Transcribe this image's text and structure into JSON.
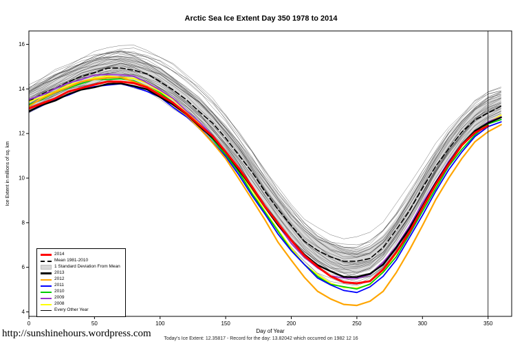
{
  "title": "Arctic Sea Ice Extent Day 350 1978 to 2014",
  "footer": {
    "link": "http://sunshinehours.wordpress.com",
    "status": "Today's Ice Extent: 12.35817 - Record for the day: 13.82042 which occurred on 1982 12 16"
  },
  "chart_data": {
    "type": "line",
    "title": "Arctic Sea Ice Extent Day 350 1978 to 2014",
    "xlabel": "Day of Year",
    "ylabel": "Ice Extent in millions of sq. km",
    "xlim": [
      0,
      368
    ],
    "ylim": [
      3.8,
      16.6
    ],
    "xticks": [
      0,
      50,
      100,
      150,
      200,
      250,
      300,
      350
    ],
    "yticks": [
      4,
      6,
      8,
      10,
      12,
      14,
      16
    ],
    "vline_x": 350,
    "grid": false,
    "legend_position": "bottom-left",
    "x": [
      0,
      10,
      20,
      30,
      40,
      50,
      60,
      70,
      80,
      90,
      100,
      110,
      120,
      130,
      140,
      150,
      160,
      170,
      180,
      190,
      200,
      210,
      220,
      230,
      240,
      250,
      260,
      270,
      280,
      290,
      300,
      310,
      320,
      330,
      340,
      350,
      360
    ],
    "std_band": {
      "label": "1 Standard Deviation From Mean",
      "halfwidth": 0.55,
      "color": "#d8d8d8"
    },
    "background_years": {
      "label": "Every Other Year",
      "count": 30,
      "color": "#000000",
      "upper": [
        14.3,
        14.65,
        15.0,
        15.3,
        15.6,
        15.85,
        16.05,
        16.15,
        16.05,
        15.85,
        15.55,
        15.15,
        14.7,
        14.2,
        13.6,
        12.95,
        12.2,
        11.4,
        10.55,
        9.75,
        9.0,
        8.35,
        7.85,
        7.5,
        7.3,
        7.25,
        7.45,
        7.95,
        8.7,
        9.6,
        10.6,
        11.55,
        12.4,
        13.1,
        13.7,
        14.1,
        14.35
      ],
      "lower": [
        12.85,
        13.1,
        13.35,
        13.6,
        13.8,
        13.95,
        14.05,
        14.1,
        14.0,
        13.8,
        13.5,
        13.1,
        12.65,
        12.15,
        11.55,
        10.85,
        10.05,
        9.15,
        8.25,
        7.4,
        6.6,
        5.95,
        5.45,
        5.1,
        4.9,
        4.85,
        5.05,
        5.55,
        6.3,
        7.25,
        8.3,
        9.35,
        10.3,
        11.1,
        11.75,
        12.2,
        12.45
      ]
    },
    "series": [
      {
        "name": "Mean 1981-2010",
        "color": "#000000",
        "width": 1.6,
        "dash": "7 4",
        "values": [
          13.45,
          13.75,
          14.05,
          14.3,
          14.55,
          14.75,
          14.9,
          14.95,
          14.85,
          14.65,
          14.35,
          13.95,
          13.5,
          13.0,
          12.45,
          11.8,
          11.05,
          10.25,
          9.4,
          8.6,
          7.85,
          7.2,
          6.75,
          6.45,
          6.3,
          6.25,
          6.4,
          6.9,
          7.65,
          8.55,
          9.55,
          10.5,
          11.35,
          12.05,
          12.6,
          12.95,
          13.2
        ]
      },
      {
        "name": "2008",
        "color": "#ffff00",
        "width": 1.8,
        "values": [
          13.4,
          13.65,
          13.9,
          14.15,
          14.35,
          14.5,
          14.55,
          14.55,
          14.45,
          14.25,
          13.9,
          13.5,
          13.0,
          12.45,
          11.85,
          11.15,
          10.35,
          9.45,
          8.55,
          7.65,
          6.85,
          6.15,
          5.65,
          5.3,
          5.1,
          5.05,
          5.25,
          5.8,
          6.6,
          7.55,
          8.6,
          9.65,
          10.6,
          11.4,
          12.05,
          12.5,
          12.8
        ]
      },
      {
        "name": "2009",
        "color": "#9932cc",
        "width": 1.8,
        "values": [
          13.5,
          13.75,
          14.0,
          14.25,
          14.45,
          14.6,
          14.65,
          14.65,
          14.55,
          14.3,
          13.95,
          13.55,
          13.05,
          12.5,
          11.9,
          11.2,
          10.4,
          9.55,
          8.7,
          7.85,
          7.1,
          6.45,
          5.95,
          5.65,
          5.5,
          5.5,
          5.7,
          6.2,
          6.95,
          7.85,
          8.85,
          9.85,
          10.75,
          11.5,
          12.1,
          12.5,
          12.75
        ]
      },
      {
        "name": "2010",
        "color": "#00cc00",
        "width": 1.8,
        "values": [
          13.3,
          13.55,
          13.8,
          14.05,
          14.25,
          14.4,
          14.45,
          14.45,
          14.35,
          14.15,
          13.8,
          13.4,
          12.9,
          12.35,
          11.75,
          11.05,
          10.25,
          9.35,
          8.45,
          7.6,
          6.8,
          6.1,
          5.6,
          5.25,
          5.1,
          5.05,
          5.25,
          5.75,
          6.5,
          7.45,
          8.5,
          9.55,
          10.5,
          11.3,
          11.95,
          12.4,
          12.65
        ]
      },
      {
        "name": "2011",
        "color": "#0000ff",
        "width": 1.8,
        "values": [
          13.0,
          13.25,
          13.5,
          13.75,
          13.95,
          14.1,
          14.2,
          14.2,
          14.1,
          13.9,
          13.6,
          13.2,
          12.75,
          12.25,
          11.65,
          10.95,
          10.15,
          9.25,
          8.35,
          7.5,
          6.75,
          6.1,
          5.55,
          5.2,
          4.95,
          4.9,
          5.1,
          5.6,
          6.35,
          7.3,
          8.35,
          9.4,
          10.35,
          11.2,
          11.85,
          12.3,
          12.55
        ]
      },
      {
        "name": "2012",
        "color": "#ffa500",
        "width": 2.2,
        "values": [
          13.25,
          13.55,
          13.85,
          14.1,
          14.3,
          14.45,
          14.5,
          14.5,
          14.35,
          14.1,
          13.75,
          13.3,
          12.8,
          12.25,
          11.6,
          10.85,
          10.0,
          9.05,
          8.1,
          7.15,
          6.3,
          5.55,
          4.95,
          4.55,
          4.35,
          4.3,
          4.45,
          4.95,
          5.75,
          6.75,
          7.9,
          9.0,
          10.0,
          10.9,
          11.6,
          12.1,
          12.4
        ]
      },
      {
        "name": "2013",
        "color": "#000000",
        "width": 2.4,
        "values": [
          13.0,
          13.25,
          13.5,
          13.75,
          13.95,
          14.1,
          14.2,
          14.25,
          14.15,
          13.95,
          13.65,
          13.3,
          12.85,
          12.35,
          11.8,
          11.15,
          10.4,
          9.55,
          8.7,
          7.9,
          7.2,
          6.6,
          6.1,
          5.8,
          5.6,
          5.55,
          5.7,
          6.15,
          6.85,
          7.75,
          8.75,
          9.75,
          10.7,
          11.5,
          12.1,
          12.5,
          12.7
        ]
      },
      {
        "name": "2014",
        "color": "#ff0000",
        "width": 3,
        "values": [
          13.1,
          13.35,
          13.6,
          13.85,
          14.05,
          14.2,
          14.3,
          14.35,
          14.25,
          14.05,
          13.75,
          13.35,
          12.9,
          12.4,
          11.85,
          11.2,
          10.45,
          9.6,
          8.75,
          7.95,
          7.2,
          6.55,
          6.0,
          5.6,
          5.35,
          5.25,
          5.4,
          5.9,
          6.65,
          7.6,
          8.65,
          9.7,
          10.65,
          11.45,
          12.05,
          12.36
        ]
      }
    ],
    "legend": [
      {
        "label": "2014",
        "type": "line",
        "color": "#ff0000",
        "thickness": 3
      },
      {
        "label": "Mean 1981-2010",
        "type": "dashed",
        "color": "#000000",
        "thickness": 2
      },
      {
        "label": "1 Standard Deviation From Mean",
        "type": "band",
        "color": "#d8d8d8",
        "thickness": 7
      },
      {
        "label": "2013",
        "type": "line",
        "color": "#000000",
        "thickness": 3
      },
      {
        "label": "2012",
        "type": "line",
        "color": "#ffa500",
        "thickness": 2
      },
      {
        "label": "2011",
        "type": "line",
        "color": "#0000ff",
        "thickness": 2
      },
      {
        "label": "2010",
        "type": "line",
        "color": "#00cc00",
        "thickness": 2
      },
      {
        "label": "2009",
        "type": "line",
        "color": "#9932cc",
        "thickness": 2
      },
      {
        "label": "2008",
        "type": "line",
        "color": "#ffff00",
        "thickness": 2
      },
      {
        "label": "Every Other Year",
        "type": "line",
        "color": "#000000",
        "thickness": 1
      }
    ]
  }
}
